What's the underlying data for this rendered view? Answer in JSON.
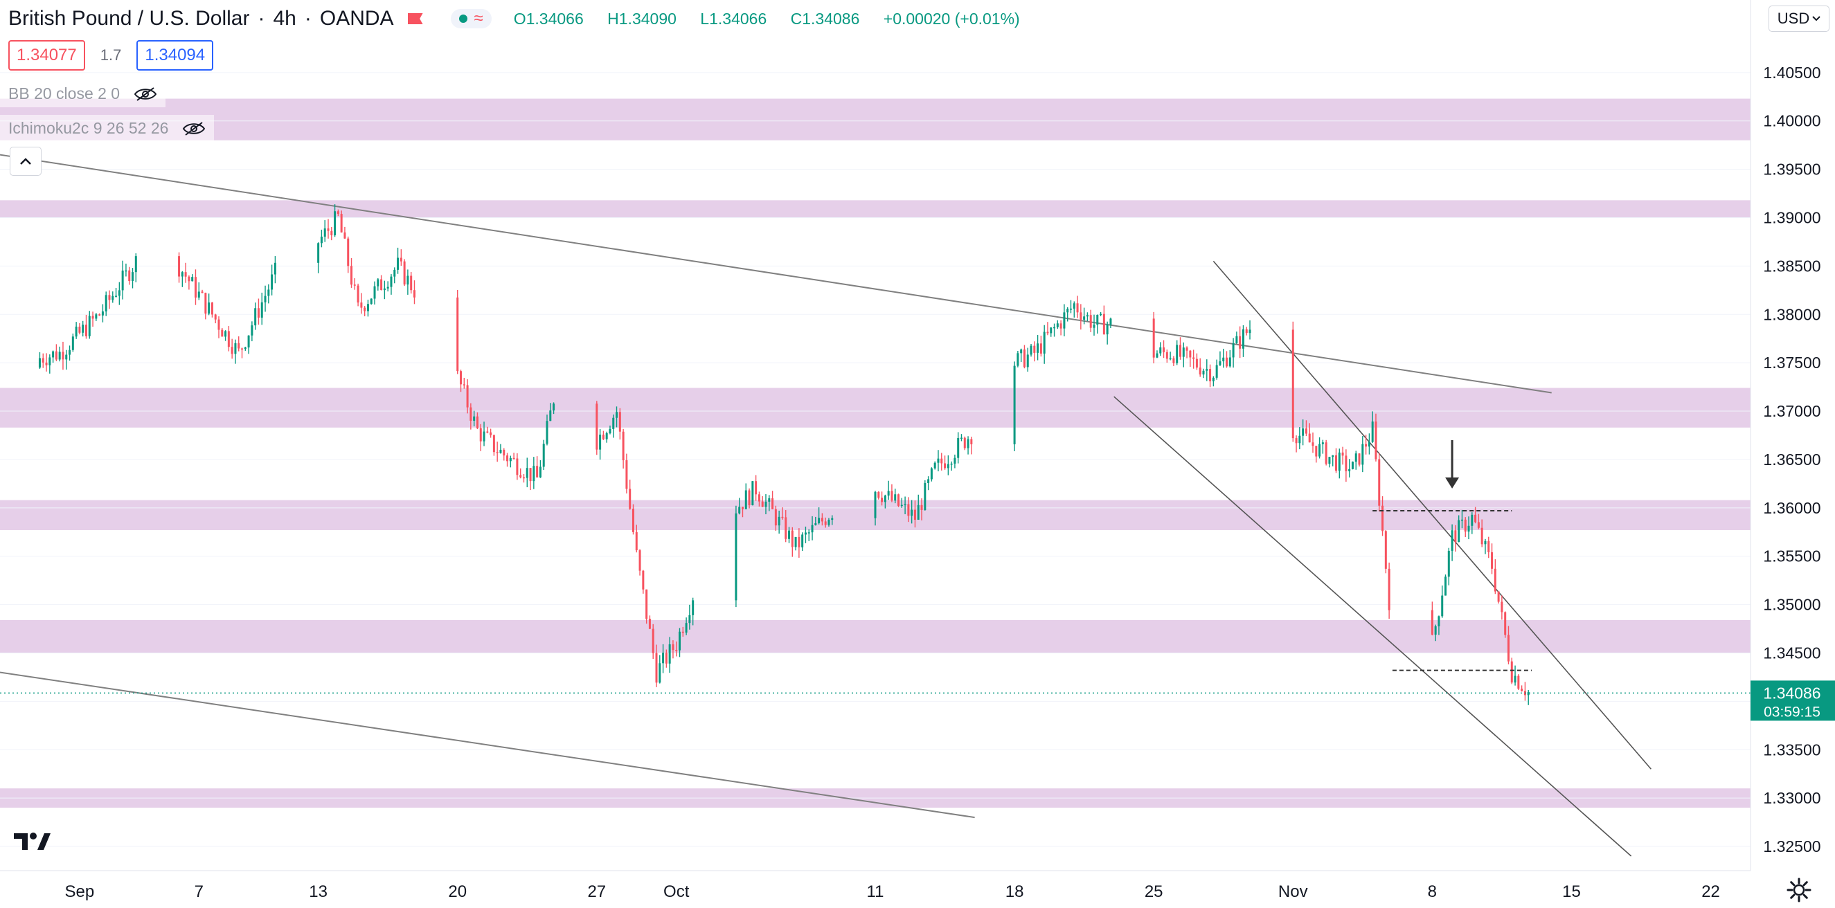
{
  "header": {
    "symbol_title": "British Pound / U.S. Dollar",
    "interval": "4h",
    "exchange": "OANDA",
    "ohlc": {
      "o": "1.34066",
      "h": "1.34090",
      "l": "1.34066",
      "c": "1.34086",
      "change": "+0.00020 (+0.01%)"
    },
    "labels": {
      "o": "O",
      "h": "H",
      "l": "L",
      "c": "C"
    }
  },
  "trade": {
    "bid": "1.34077",
    "spread": "1.7",
    "ask": "1.34094"
  },
  "indicators": [
    {
      "label": "BB 20 close 2 0"
    },
    {
      "label": "Ichimoku2c 9 26 52 26"
    }
  ],
  "currency": {
    "label": "USD"
  },
  "price_tag": {
    "value": "1.34086",
    "countdown": "03:59:15"
  },
  "colors": {
    "up": "#089981",
    "down": "#f7525f",
    "zone": "#e6cfe9",
    "trendline": "#808080",
    "channel": "#555555"
  },
  "icons": {
    "collapse": "chevron-up-icon",
    "eye": "eye-crossed-icon",
    "settings": "gear-icon",
    "logo": "tradingview-logo-icon"
  },
  "chart_data": {
    "type": "candlestick",
    "ylim": [
      1.3225,
      1.4125
    ],
    "y_ticks": [
      "1.40500",
      "1.40000",
      "1.39500",
      "1.39000",
      "1.38500",
      "1.38000",
      "1.37500",
      "1.37000",
      "1.36500",
      "1.36000",
      "1.35500",
      "1.35000",
      "1.34500",
      "1.34000",
      "1.33500",
      "1.33000",
      "1.32500"
    ],
    "x_ticks": [
      {
        "label": "Sep",
        "date": "2021-09-01"
      },
      {
        "label": "7",
        "date": "2021-09-07"
      },
      {
        "label": "13",
        "date": "2021-09-13"
      },
      {
        "label": "20",
        "date": "2021-09-20"
      },
      {
        "label": "27",
        "date": "2021-09-27"
      },
      {
        "label": "Oct",
        "date": "2021-10-01"
      },
      {
        "label": "11",
        "date": "2021-10-11"
      },
      {
        "label": "18",
        "date": "2021-10-18"
      },
      {
        "label": "25",
        "date": "2021-10-25"
      },
      {
        "label": "Nov",
        "date": "2021-11-01"
      },
      {
        "label": "8",
        "date": "2021-11-08"
      },
      {
        "label": "15",
        "date": "2021-11-15"
      },
      {
        "label": "22",
        "date": "2021-11-22"
      }
    ],
    "x_range": [
      "2021-08-28",
      "2021-11-24"
    ],
    "current_price": 1.34086,
    "zones": [
      {
        "from": 1.398,
        "to": 1.4023
      },
      {
        "from": 1.39,
        "to": 1.3918
      },
      {
        "from": 1.3683,
        "to": 1.3724
      },
      {
        "from": 1.3577,
        "to": 1.3608
      },
      {
        "from": 1.345,
        "to": 1.3484
      },
      {
        "from": 1.329,
        "to": 1.331
      }
    ],
    "trendlines": [
      {
        "from": [
          "2021-08-28",
          1.3965
        ],
        "to": [
          "2021-11-14",
          1.3719
        ],
        "style": "trend"
      },
      {
        "from": [
          "2021-08-28",
          1.343
        ],
        "to": [
          "2021-10-16",
          1.328
        ],
        "style": "trend"
      },
      {
        "from": [
          "2021-10-28",
          1.3855
        ],
        "to": [
          "2021-11-19",
          1.333
        ],
        "style": "channel"
      },
      {
        "from": [
          "2021-10-23",
          1.3715
        ],
        "to": [
          "2021-11-18",
          1.324
        ],
        "style": "channel"
      }
    ],
    "horizontal_marks": [
      {
        "from": "2021-11-05",
        "to": "2021-11-12",
        "price": 1.3597
      },
      {
        "from": "2021-11-06",
        "to": "2021-11-13",
        "price": 1.3432
      }
    ],
    "arrow": {
      "date": "2021-11-09",
      "from_price": 1.367,
      "to_price": 1.362
    },
    "anchors": [
      {
        "date": "2021-08-28",
        "price": 1.3745
      },
      {
        "date": "2021-08-31",
        "price": 1.376
      },
      {
        "date": "2021-09-02",
        "price": 1.38
      },
      {
        "date": "2021-09-04",
        "price": 1.386
      },
      {
        "date": "2021-09-06",
        "price": 1.385
      },
      {
        "date": "2021-09-08",
        "price": 1.379
      },
      {
        "date": "2021-09-09",
        "price": 1.376
      },
      {
        "date": "2021-09-11",
        "price": 1.385
      },
      {
        "date": "2021-09-12",
        "price": 1.385
      },
      {
        "date": "2021-09-14",
        "price": 1.39
      },
      {
        "date": "2021-09-15",
        "price": 1.3805
      },
      {
        "date": "2021-09-17",
        "price": 1.385
      },
      {
        "date": "2021-09-19",
        "price": 1.379
      },
      {
        "date": "2021-09-21",
        "price": 1.368
      },
      {
        "date": "2021-09-22",
        "price": 1.366
      },
      {
        "date": "2021-09-24",
        "price": 1.363
      },
      {
        "date": "2021-09-25",
        "price": 1.373
      },
      {
        "date": "2021-09-27",
        "price": 1.367
      },
      {
        "date": "2021-09-28",
        "price": 1.37
      },
      {
        "date": "2021-09-29",
        "price": 1.355
      },
      {
        "date": "2021-09-30",
        "price": 1.343
      },
      {
        "date": "2021-10-01",
        "price": 1.346
      },
      {
        "date": "2021-10-02",
        "price": 1.352
      },
      {
        "date": "2021-10-04",
        "price": 1.36
      },
      {
        "date": "2021-10-05",
        "price": 1.362
      },
      {
        "date": "2021-10-07",
        "price": 1.356
      },
      {
        "date": "2021-10-09",
        "price": 1.36
      },
      {
        "date": "2021-10-11",
        "price": 1.362
      },
      {
        "date": "2021-10-13",
        "price": 1.359
      },
      {
        "date": "2021-10-14",
        "price": 1.364
      },
      {
        "date": "2021-10-16",
        "price": 1.368
      },
      {
        "date": "2021-10-17",
        "price": 1.374
      },
      {
        "date": "2021-10-19",
        "price": 1.376
      },
      {
        "date": "2021-10-21",
        "price": 1.381
      },
      {
        "date": "2021-10-22",
        "price": 1.379
      },
      {
        "date": "2021-10-24",
        "price": 1.379
      },
      {
        "date": "2021-10-25",
        "price": 1.376
      },
      {
        "date": "2021-10-26",
        "price": 1.376
      },
      {
        "date": "2021-10-28",
        "price": 1.374
      },
      {
        "date": "2021-10-30",
        "price": 1.379
      },
      {
        "date": "2021-10-31",
        "price": 1.377
      },
      {
        "date": "2021-11-01",
        "price": 1.368
      },
      {
        "date": "2021-11-03",
        "price": 1.365
      },
      {
        "date": "2021-11-04",
        "price": 1.364
      },
      {
        "date": "2021-11-05",
        "price": 1.368
      },
      {
        "date": "2021-11-06",
        "price": 1.347
      },
      {
        "date": "2021-11-07",
        "price": 1.344
      },
      {
        "date": "2021-11-08",
        "price": 1.346
      },
      {
        "date": "2021-11-09",
        "price": 1.357
      },
      {
        "date": "2021-11-10",
        "price": 1.359
      },
      {
        "date": "2021-11-11",
        "price": 1.354
      },
      {
        "date": "2021-11-12",
        "price": 1.343
      },
      {
        "date": "2021-11-13",
        "price": 1.3405
      },
      {
        "date": "2021-11-13.25",
        "price": 1.34086
      }
    ]
  }
}
